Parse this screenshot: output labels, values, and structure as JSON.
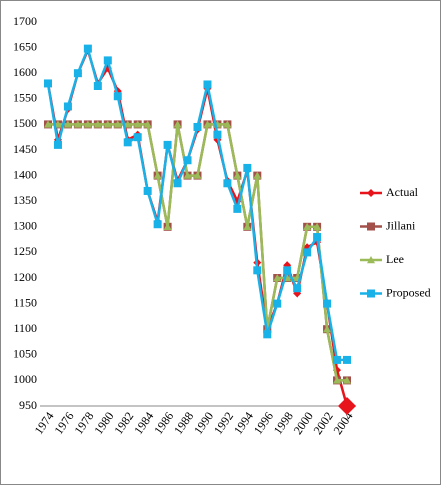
{
  "chart_data": {
    "type": "line",
    "categories": [
      "1974",
      null,
      "1976",
      null,
      "1978",
      null,
      "1980",
      null,
      "1982",
      null,
      "1984",
      null,
      "1986",
      null,
      "1988",
      null,
      "1990",
      null,
      "1992",
      null,
      "1994",
      null,
      "1996",
      null,
      "1998",
      null,
      "2000",
      null,
      "2002",
      null,
      "2004"
    ],
    "series": [
      {
        "name": "Actual",
        "color": "#e8141c",
        "marker": "diamond",
        "values": [
          1580,
          1470,
          1530,
          1600,
          1645,
          1580,
          1610,
          1565,
          1470,
          1480,
          1370,
          1310,
          1460,
          1390,
          1430,
          1490,
          1570,
          1470,
          1390,
          1350,
          1410,
          1230,
          1100,
          1150,
          1225,
          1170,
          1260,
          1270,
          1150,
          1020,
          950
        ]
      },
      {
        "name": "Jillani",
        "color": "#a3504a",
        "marker": "square",
        "values": [
          1500,
          1500,
          1500,
          1500,
          1500,
          1500,
          1500,
          1500,
          1500,
          1500,
          1500,
          1400,
          1300,
          1500,
          1400,
          1400,
          1500,
          1500,
          1500,
          1400,
          1300,
          1400,
          1100,
          1200,
          1200,
          1200,
          1300,
          1300,
          1100,
          1000,
          1000
        ]
      },
      {
        "name": "Lee",
        "color": "#9bbb59",
        "marker": "triangle",
        "values": [
          1500,
          1500,
          1500,
          1500,
          1500,
          1500,
          1500,
          1500,
          1500,
          1500,
          1500,
          1400,
          1300,
          1500,
          1400,
          1400,
          1500,
          1500,
          1500,
          1400,
          1300,
          1400,
          1100,
          1200,
          1200,
          1200,
          1300,
          1300,
          1100,
          1000,
          1000
        ]
      },
      {
        "name": "Proposed",
        "color": "#19b2e8",
        "marker": "square",
        "values": [
          1580,
          1460,
          1535,
          1600,
          1648,
          1575,
          1625,
          1555,
          1465,
          1475,
          1370,
          1305,
          1460,
          1385,
          1430,
          1495,
          1578,
          1480,
          1385,
          1335,
          1415,
          1215,
          1090,
          1150,
          1215,
          1180,
          1250,
          1280,
          1150,
          1040,
          1040
        ]
      }
    ],
    "ylim": [
      950,
      1700
    ],
    "yticks": [
      950,
      1000,
      1050,
      1100,
      1150,
      1200,
      1250,
      1300,
      1350,
      1400,
      1450,
      1500,
      1550,
      1600,
      1650,
      1700
    ],
    "grid": false,
    "legend": "right"
  }
}
